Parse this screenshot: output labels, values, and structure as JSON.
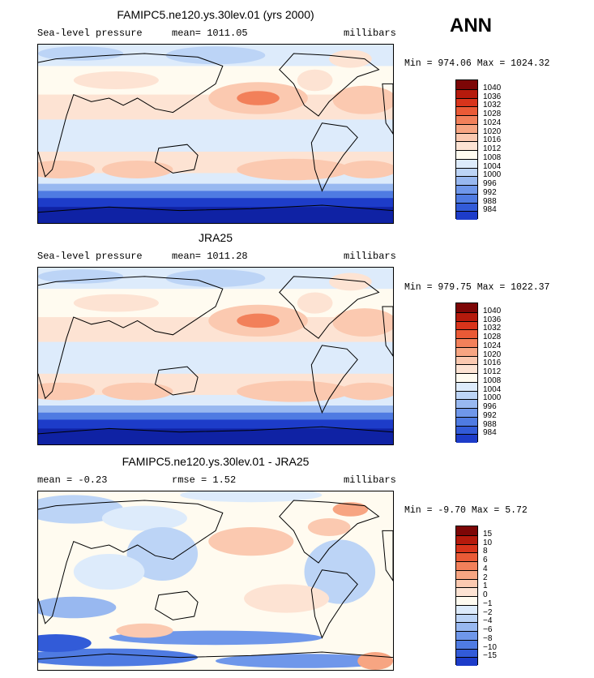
{
  "season": "ANN",
  "colors": {
    "full": [
      "#fffbf0",
      "#fde3d3",
      "#fbc9b0",
      "#f7a582",
      "#f2805a",
      "#ea5a36",
      "#d8341b",
      "#b51a0c",
      "#7d0606"
    ],
    "full_blue": [
      "#ddebfb",
      "#bcd4f6",
      "#98b8f0",
      "#6f97ea",
      "#4f7be2",
      "#325bd8",
      "#1d3cc9",
      "#0f22a4",
      "#061574"
    ],
    "diff": [
      "#fffbf0",
      "#fde3d3",
      "#fbc9b0",
      "#f7a582",
      "#f2805a",
      "#ea5a36",
      "#d8341b",
      "#b51a0c",
      "#7d0606"
    ],
    "diff_blue": [
      "#ddebfb",
      "#bcd4f6",
      "#98b8f0",
      "#6f97ea",
      "#4f7be2",
      "#325bd8",
      "#1d3cc9",
      "#0f22a4",
      "#061574"
    ]
  },
  "panels": [
    {
      "title": "FAMIPC5.ne120.ys.30lev.01 (yrs 2000)",
      "left_label": "Sea-level pressure",
      "center_label": "mean= 1011.05",
      "right_label": "millibars",
      "minmax": "Min = 974.06 Max = 1024.32"
    },
    {
      "title": "JRA25",
      "left_label": "Sea-level pressure",
      "center_label": "mean= 1011.28",
      "right_label": "millibars",
      "minmax": "Min = 979.75 Max = 1022.37"
    },
    {
      "title": "FAMIPC5.ne120.ys.30lev.01 - JRA25",
      "left_label": "mean =  -0.23",
      "center_label": "rmse =    1.52",
      "right_label": "millibars",
      "minmax": "Min =  -9.70 Max =   5.72"
    }
  ],
  "chart_data": [
    {
      "type": "heatmap",
      "title": "FAMIPC5.ne120.ys.30lev.01 (yrs 2000)",
      "variable": "Sea-level pressure",
      "units": "millibars",
      "mean": 1011.05,
      "min": 974.06,
      "max": 1024.32,
      "colorbar_levels": [
        "1040",
        "1036",
        "1032",
        "1028",
        "1024",
        "1020",
        "1016",
        "1012",
        "1008",
        "1004",
        "1000",
        "996",
        "992",
        "988",
        "984"
      ]
    },
    {
      "type": "heatmap",
      "title": "JRA25",
      "variable": "Sea-level pressure",
      "units": "millibars",
      "mean": 1011.28,
      "min": 979.75,
      "max": 1022.37,
      "colorbar_levels": [
        "1040",
        "1036",
        "1032",
        "1028",
        "1024",
        "1020",
        "1016",
        "1012",
        "1008",
        "1004",
        "1000",
        "996",
        "992",
        "988",
        "984"
      ]
    },
    {
      "type": "heatmap",
      "title": "FAMIPC5.ne120.ys.30lev.01 - JRA25",
      "units": "millibars",
      "mean": -0.23,
      "rmse": 1.52,
      "min": -9.7,
      "max": 5.72,
      "colorbar_levels": [
        "15",
        "10",
        "8",
        "6",
        "4",
        "2",
        "1",
        "0",
        "−1",
        "−2",
        "−4",
        "−6",
        "−8",
        "−10",
        "−15"
      ]
    }
  ]
}
